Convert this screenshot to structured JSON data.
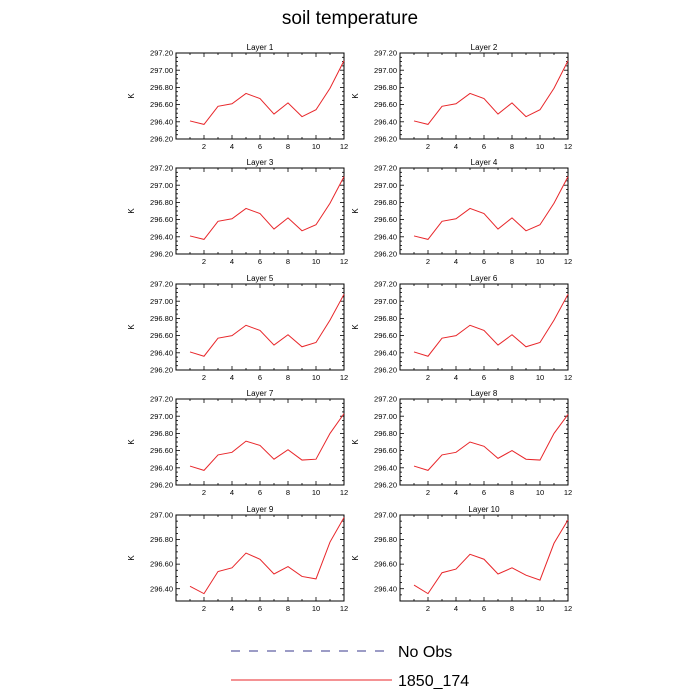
{
  "figure": {
    "title": "soil temperature",
    "legend": [
      {
        "label": "No Obs",
        "color": "#3a3a8c",
        "dash": true
      },
      {
        "label": "1850_174",
        "color": "#e8262a",
        "dash": false
      }
    ]
  },
  "chart_data": [
    {
      "type": "line",
      "title": "Layer 1",
      "ylabel": "K",
      "xlabel": "",
      "xlim": [
        0,
        12
      ],
      "ylim": [
        296.2,
        297.2
      ],
      "xticks": [
        2,
        4,
        6,
        8,
        10,
        12
      ],
      "yticks": [
        "296.20",
        "296.40",
        "296.60",
        "296.80",
        "297.00",
        "297.20"
      ],
      "grid": false,
      "series": [
        {
          "color": "#e8262a",
          "x": [
            1,
            2,
            3,
            4,
            5,
            6,
            7,
            8,
            9,
            10,
            11,
            12
          ],
          "values": [
            296.41,
            296.37,
            296.58,
            296.61,
            296.73,
            296.67,
            296.49,
            296.62,
            296.46,
            296.54,
            296.79,
            297.11
          ]
        }
      ]
    },
    {
      "type": "line",
      "title": "Layer 2",
      "ylabel": "K",
      "xlabel": "",
      "xlim": [
        0,
        12
      ],
      "ylim": [
        296.2,
        297.2
      ],
      "xticks": [
        2,
        4,
        6,
        8,
        10,
        12
      ],
      "yticks": [
        "296.20",
        "296.40",
        "296.60",
        "296.80",
        "297.00",
        "297.20"
      ],
      "grid": false,
      "series": [
        {
          "color": "#e8262a",
          "x": [
            1,
            2,
            3,
            4,
            5,
            6,
            7,
            8,
            9,
            10,
            11,
            12
          ],
          "values": [
            296.41,
            296.37,
            296.58,
            296.61,
            296.73,
            296.67,
            296.49,
            296.62,
            296.46,
            296.54,
            296.79,
            297.11
          ]
        }
      ]
    },
    {
      "type": "line",
      "title": "Layer 3",
      "ylabel": "K",
      "xlabel": "",
      "xlim": [
        0,
        12
      ],
      "ylim": [
        296.2,
        297.2
      ],
      "xticks": [
        2,
        4,
        6,
        8,
        10,
        12
      ],
      "yticks": [
        "296.20",
        "296.40",
        "296.60",
        "296.80",
        "297.00",
        "297.20"
      ],
      "grid": false,
      "series": [
        {
          "color": "#e8262a",
          "x": [
            1,
            2,
            3,
            4,
            5,
            6,
            7,
            8,
            9,
            10,
            11,
            12
          ],
          "values": [
            296.41,
            296.37,
            296.58,
            296.61,
            296.73,
            296.67,
            296.49,
            296.62,
            296.47,
            296.54,
            296.79,
            297.1
          ]
        }
      ]
    },
    {
      "type": "line",
      "title": "Layer 4",
      "ylabel": "K",
      "xlabel": "",
      "xlim": [
        0,
        12
      ],
      "ylim": [
        296.2,
        297.2
      ],
      "xticks": [
        2,
        4,
        6,
        8,
        10,
        12
      ],
      "yticks": [
        "296.20",
        "296.40",
        "296.60",
        "296.80",
        "297.00",
        "297.20"
      ],
      "grid": false,
      "series": [
        {
          "color": "#e8262a",
          "x": [
            1,
            2,
            3,
            4,
            5,
            6,
            7,
            8,
            9,
            10,
            11,
            12
          ],
          "values": [
            296.41,
            296.37,
            296.58,
            296.61,
            296.73,
            296.67,
            296.49,
            296.62,
            296.47,
            296.54,
            296.79,
            297.1
          ]
        }
      ]
    },
    {
      "type": "line",
      "title": "Layer 5",
      "ylabel": "K",
      "xlabel": "",
      "xlim": [
        0,
        12
      ],
      "ylim": [
        296.2,
        297.2
      ],
      "xticks": [
        2,
        4,
        6,
        8,
        10,
        12
      ],
      "yticks": [
        "296.20",
        "296.40",
        "296.60",
        "296.80",
        "297.00",
        "297.20"
      ],
      "grid": false,
      "series": [
        {
          "color": "#e8262a",
          "x": [
            1,
            2,
            3,
            4,
            5,
            6,
            7,
            8,
            9,
            10,
            11,
            12
          ],
          "values": [
            296.41,
            296.36,
            296.57,
            296.6,
            296.72,
            296.66,
            296.49,
            296.61,
            296.47,
            296.52,
            296.78,
            297.08
          ]
        }
      ]
    },
    {
      "type": "line",
      "title": "Layer 6",
      "ylabel": "K",
      "xlabel": "",
      "xlim": [
        0,
        12
      ],
      "ylim": [
        296.2,
        297.2
      ],
      "xticks": [
        2,
        4,
        6,
        8,
        10,
        12
      ],
      "yticks": [
        "296.20",
        "296.40",
        "296.60",
        "296.80",
        "297.00",
        "297.20"
      ],
      "grid": false,
      "series": [
        {
          "color": "#e8262a",
          "x": [
            1,
            2,
            3,
            4,
            5,
            6,
            7,
            8,
            9,
            10,
            11,
            12
          ],
          "values": [
            296.41,
            296.36,
            296.57,
            296.6,
            296.72,
            296.66,
            296.49,
            296.61,
            296.47,
            296.52,
            296.78,
            297.08
          ]
        }
      ]
    },
    {
      "type": "line",
      "title": "Layer 7",
      "ylabel": "K",
      "xlabel": "",
      "xlim": [
        0,
        12
      ],
      "ylim": [
        296.2,
        297.2
      ],
      "xticks": [
        2,
        4,
        6,
        8,
        10,
        12
      ],
      "yticks": [
        "296.20",
        "296.40",
        "296.60",
        "296.80",
        "297.00",
        "297.20"
      ],
      "grid": false,
      "series": [
        {
          "color": "#e8262a",
          "x": [
            1,
            2,
            3,
            4,
            5,
            6,
            7,
            8,
            9,
            10,
            11,
            12
          ],
          "values": [
            296.42,
            296.37,
            296.55,
            296.58,
            296.71,
            296.66,
            296.5,
            296.61,
            296.49,
            296.5,
            296.8,
            297.03
          ]
        }
      ]
    },
    {
      "type": "line",
      "title": "Layer 8",
      "ylabel": "K",
      "xlabel": "",
      "xlim": [
        0,
        12
      ],
      "ylim": [
        296.2,
        297.2
      ],
      "xticks": [
        2,
        4,
        6,
        8,
        10,
        12
      ],
      "yticks": [
        "296.20",
        "296.40",
        "296.60",
        "296.80",
        "297.00",
        "297.20"
      ],
      "grid": false,
      "series": [
        {
          "color": "#e8262a",
          "x": [
            1,
            2,
            3,
            4,
            5,
            6,
            7,
            8,
            9,
            10,
            11,
            12
          ],
          "values": [
            296.42,
            296.37,
            296.55,
            296.58,
            296.7,
            296.65,
            296.51,
            296.6,
            296.5,
            296.49,
            296.8,
            297.02
          ]
        }
      ]
    },
    {
      "type": "line",
      "title": "Layer 9",
      "ylabel": "K",
      "xlabel": "",
      "xlim": [
        0,
        12
      ],
      "ylim": [
        296.3,
        297.0
      ],
      "xticks": [
        2,
        4,
        6,
        8,
        10,
        12
      ],
      "yticks": [
        "296.40",
        "296.60",
        "296.80",
        "297.00"
      ],
      "grid": false,
      "series": [
        {
          "color": "#e8262a",
          "x": [
            1,
            2,
            3,
            4,
            5,
            6,
            7,
            8,
            9,
            10,
            11,
            12
          ],
          "values": [
            296.42,
            296.36,
            296.54,
            296.57,
            296.69,
            296.64,
            296.52,
            296.58,
            296.5,
            296.48,
            296.78,
            296.98
          ]
        }
      ]
    },
    {
      "type": "line",
      "title": "Layer 10",
      "ylabel": "K",
      "xlabel": "",
      "xlim": [
        0,
        12
      ],
      "ylim": [
        296.3,
        297.0
      ],
      "xticks": [
        2,
        4,
        6,
        8,
        10,
        12
      ],
      "yticks": [
        "296.40",
        "296.60",
        "296.80",
        "297.00"
      ],
      "grid": false,
      "series": [
        {
          "color": "#e8262a",
          "x": [
            1,
            2,
            3,
            4,
            5,
            6,
            7,
            8,
            9,
            10,
            11,
            12
          ],
          "values": [
            296.43,
            296.36,
            296.53,
            296.56,
            296.68,
            296.64,
            296.52,
            296.57,
            296.51,
            296.47,
            296.77,
            296.96
          ]
        }
      ]
    }
  ]
}
